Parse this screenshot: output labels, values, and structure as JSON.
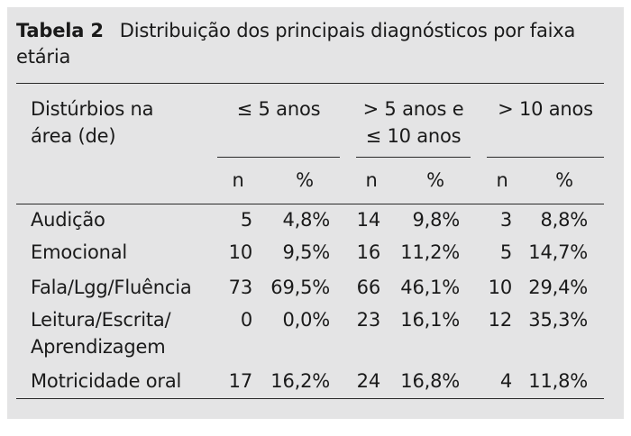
{
  "caption": {
    "label": "Tabela 2",
    "title": "Distribuição dos principais diagnósticos por faixa etária"
  },
  "header": {
    "row_label": "Distúrbios na área (de)",
    "groups": [
      "≤ 5 anos",
      "> 5 anos e ≤ 10 anos",
      "> 10 anos"
    ],
    "sub": [
      "n",
      "%",
      "n",
      "%",
      "n",
      "%"
    ]
  },
  "rows": [
    {
      "label": "Audição",
      "values": [
        "5",
        "4,8%",
        "14",
        "9,8%",
        "3",
        "8,8%"
      ]
    },
    {
      "label": "Emocional",
      "values": [
        "10",
        "9,5%",
        "16",
        "11,2%",
        "5",
        "14,7%"
      ]
    },
    {
      "label": "Fala/Lgg/Fluência",
      "values": [
        "73",
        "69,5%",
        "66",
        "46,1%",
        "10",
        "29,4%"
      ]
    },
    {
      "label": "Leitura/Escrita/ Aprendizagem",
      "values": [
        "0",
        "0,0%",
        "23",
        "16,1%",
        "12",
        "35,3%"
      ]
    },
    {
      "label": "Motricidade oral",
      "values": [
        "17",
        "16,2%",
        "24",
        "16,8%",
        "4",
        "11,8%"
      ]
    }
  ]
}
